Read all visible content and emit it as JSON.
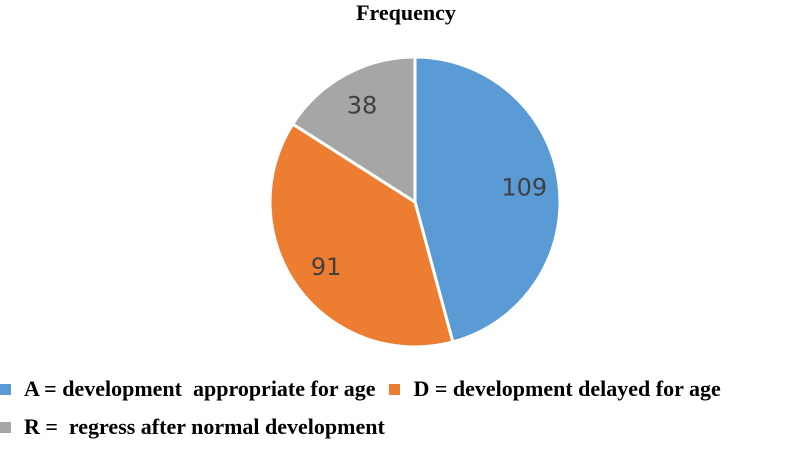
{
  "chart_data": {
    "type": "pie",
    "title": "Frequency",
    "categories": [
      "A",
      "D",
      "R"
    ],
    "values": [
      109,
      91,
      38
    ],
    "data_labels": [
      "109",
      "91",
      "38"
    ],
    "colors": [
      "#5B9BD5",
      "#ED7D31",
      "#A6A6A6"
    ],
    "slice_gap_color": "#FFFFFF",
    "value_label_color": "#404040",
    "start_angle_deg": 0,
    "direction": "clockwise",
    "legend_position": "bottom",
    "legend": [
      {
        "key": "A",
        "label": "A = development  appropriate for age",
        "color": "#5B9BD5"
      },
      {
        "key": "D",
        "label": "D = development delayed for age",
        "color": "#ED7D31"
      },
      {
        "key": "R",
        "label": "R =  regress after normal development",
        "color": "#A6A6A6"
      }
    ]
  }
}
